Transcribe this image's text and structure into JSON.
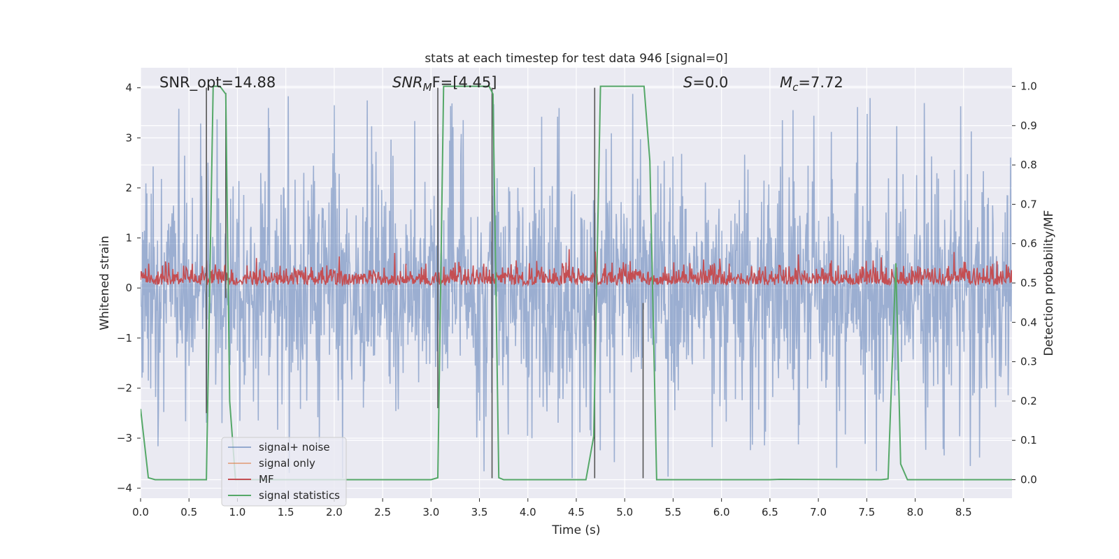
{
  "chart_data": {
    "type": "line",
    "title": "stats at each timestep for test data 946 [signal=0]",
    "xlabel": "Time (s)",
    "ylabel_left": "Whitened strain",
    "ylabel_right": "Detection probability/MF",
    "xlim": [
      0.0,
      9.0
    ],
    "ylim_left": [
      -4.2,
      4.4
    ],
    "ylim_right": [
      -0.047,
      1.047
    ],
    "grid": true,
    "x_ticks": [
      "0.0",
      "0.5",
      "1.0",
      "1.5",
      "2.0",
      "2.5",
      "3.0",
      "3.5",
      "4.0",
      "4.5",
      "5.0",
      "5.5",
      "6.0",
      "6.5",
      "7.0",
      "7.5",
      "8.0",
      "8.5"
    ],
    "y_ticks_left": [
      "4",
      "3",
      "2",
      "1",
      "0",
      "−1",
      "−2",
      "−3",
      "−4"
    ],
    "y_ticks_right": [
      "1.0",
      "0.9",
      "0.8",
      "0.7",
      "0.6",
      "0.5",
      "0.4",
      "0.3",
      "0.2",
      "0.1",
      "0.0"
    ],
    "annotations": {
      "snr_opt": "SNR_opt=14.88",
      "snr_mf_main": "SNR",
      "snr_mf_sub": "M",
      "snr_mf_rest": "F=[4.45]",
      "s_italic": "S",
      "s_rest": "=0.0",
      "mc_main": "M",
      "mc_sub": "c",
      "mc_rest": "=7.72"
    },
    "legend": {
      "placement": "lower-left",
      "entries": [
        {
          "label": "signal+ noise",
          "color": "#4c72b0"
        },
        {
          "label": "signal only",
          "color": "#dd8452"
        },
        {
          "label": "MF",
          "color": "#c44e52"
        },
        {
          "label": "signal statistics",
          "color": "#55a868"
        }
      ]
    },
    "series": [
      {
        "name": "signal statistics",
        "axis": "right",
        "color": "#55a868",
        "x": [
          0.0,
          0.08,
          0.15,
          0.68,
          0.75,
          0.82,
          0.88,
          0.92,
          0.98,
          3.0,
          3.07,
          3.13,
          3.6,
          3.64,
          3.7,
          3.75,
          4.6,
          4.68,
          4.75,
          5.2,
          5.26,
          5.33,
          6.5,
          6.6,
          7.65,
          7.72,
          7.8,
          7.85,
          7.92,
          9.0
        ],
        "y": [
          0.18,
          0.005,
          0.0,
          0.0,
          1.0,
          1.0,
          0.98,
          0.2,
          0.0,
          0.0,
          0.005,
          1.0,
          1.0,
          0.98,
          0.005,
          0.0,
          0.0,
          0.11,
          1.0,
          1.0,
          0.81,
          0.0,
          0.0,
          0.001,
          0.0,
          0.002,
          0.55,
          0.04,
          0.0,
          0.0
        ]
      }
    ],
    "noise_series": [
      {
        "name": "signal+ noise",
        "axis": "left",
        "color": "#4c72b0",
        "band_sigma": 1.0,
        "peak_max": 4.0,
        "peak_min": -3.8
      },
      {
        "name": "MF",
        "axis": "right",
        "color": "#c44e52",
        "baseline": 0.5,
        "range": [
          0.495,
          0.6
        ]
      }
    ],
    "vertical_lines": {
      "color": "#555555",
      "x": [
        0.68,
        0.88,
        3.07,
        3.63,
        4.69,
        5.19
      ],
      "ranges_left": [
        [
          -2.5,
          4.0
        ],
        [
          -0.2,
          3.9
        ],
        [
          -2.4,
          4.0
        ],
        [
          -3.8,
          4.0
        ],
        [
          -3.8,
          4.0
        ],
        [
          -3.8,
          -0.3
        ]
      ]
    }
  }
}
